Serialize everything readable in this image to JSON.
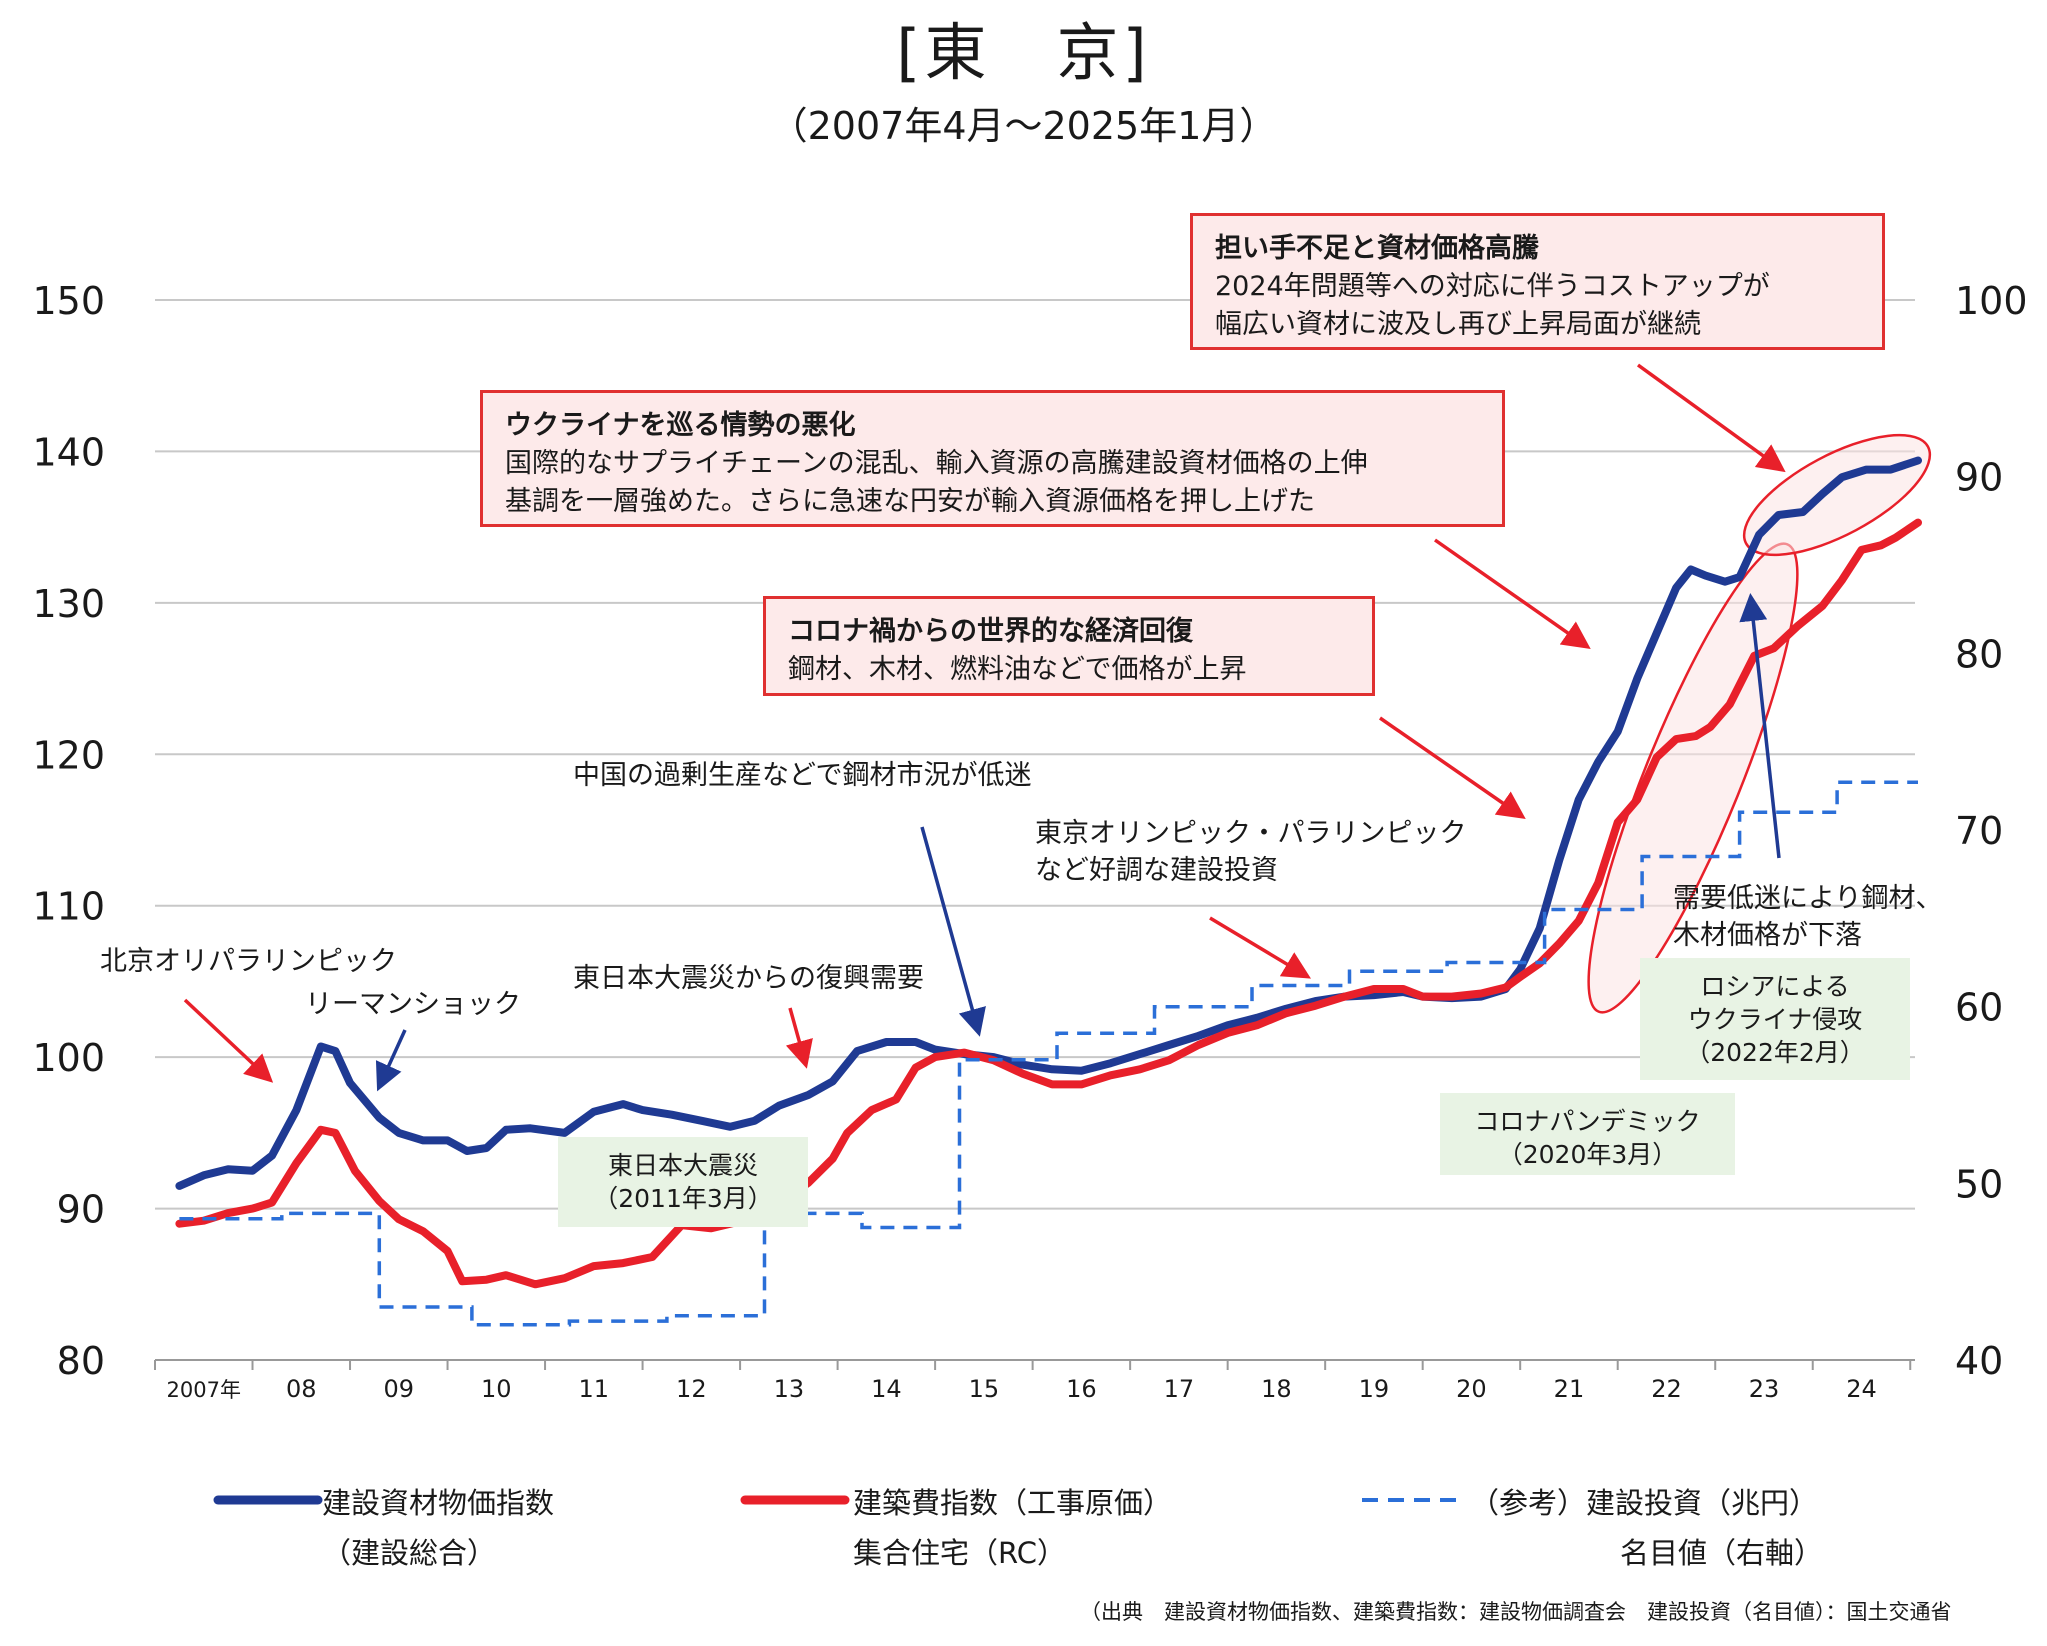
{
  "title": "[東　京]",
  "subtitle": "（2007年4月～2025年1月）",
  "source": "（出典　建設資材物価指数、建築費指数：建設物価調査会　建設投資（名目値）：国土交通省",
  "chart_data": {
    "type": "line",
    "title": "[東　京]",
    "subtitle": "（2007年4月～2025年1月）",
    "x_axis": {
      "unit": "year (decimal)",
      "range": [
        2007.0,
        2025.1
      ],
      "tick_labels": [
        "2007年",
        "08",
        "09",
        "10",
        "11",
        "12",
        "13",
        "14",
        "15",
        "16",
        "17",
        "18",
        "19",
        "20",
        "21",
        "22",
        "23",
        "24"
      ]
    },
    "y_left": {
      "range": [
        80,
        150
      ],
      "ticks": [
        80,
        90,
        100,
        110,
        120,
        130,
        140,
        150
      ],
      "grid": true
    },
    "y_right": {
      "range": [
        40,
        100
      ],
      "ticks": [
        40,
        50,
        60,
        70,
        80,
        90,
        100
      ]
    },
    "colors": {
      "blue": "#1f3a93",
      "red": "#e8202a",
      "dashed": "#2b6fd8"
    },
    "series": [
      {
        "name": "建設資材物価指数（建設総合）",
        "axis": "left",
        "color": "#1f3a93",
        "style": "solid",
        "points": [
          [
            2007.25,
            91.5
          ],
          [
            2007.5,
            92.2
          ],
          [
            2007.75,
            92.6
          ],
          [
            2008.0,
            92.5
          ],
          [
            2008.2,
            93.5
          ],
          [
            2008.45,
            96.5
          ],
          [
            2008.7,
            100.7
          ],
          [
            2008.85,
            100.4
          ],
          [
            2009.0,
            98.3
          ],
          [
            2009.3,
            96.0
          ],
          [
            2009.5,
            95.0
          ],
          [
            2009.75,
            94.5
          ],
          [
            2010.0,
            94.5
          ],
          [
            2010.2,
            93.8
          ],
          [
            2010.4,
            94.0
          ],
          [
            2010.6,
            95.2
          ],
          [
            2010.85,
            95.3
          ],
          [
            2011.2,
            95.0
          ],
          [
            2011.5,
            96.4
          ],
          [
            2011.8,
            96.9
          ],
          [
            2012.0,
            96.5
          ],
          [
            2012.3,
            96.2
          ],
          [
            2012.6,
            95.8
          ],
          [
            2012.9,
            95.4
          ],
          [
            2013.15,
            95.8
          ],
          [
            2013.4,
            96.8
          ],
          [
            2013.7,
            97.5
          ],
          [
            2013.95,
            98.4
          ],
          [
            2014.2,
            100.4
          ],
          [
            2014.5,
            101.0
          ],
          [
            2014.8,
            101.0
          ],
          [
            2015.0,
            100.5
          ],
          [
            2015.3,
            100.2
          ],
          [
            2015.6,
            100.0
          ],
          [
            2015.9,
            99.5
          ],
          [
            2016.2,
            99.2
          ],
          [
            2016.5,
            99.1
          ],
          [
            2016.8,
            99.6
          ],
          [
            2017.1,
            100.2
          ],
          [
            2017.4,
            100.8
          ],
          [
            2017.7,
            101.4
          ],
          [
            2018.0,
            102.1
          ],
          [
            2018.3,
            102.6
          ],
          [
            2018.6,
            103.2
          ],
          [
            2018.9,
            103.7
          ],
          [
            2019.2,
            104.0
          ],
          [
            2019.5,
            104.1
          ],
          [
            2019.8,
            104.3
          ],
          [
            2020.0,
            104.0
          ],
          [
            2020.3,
            103.9
          ],
          [
            2020.6,
            104.0
          ],
          [
            2020.85,
            104.5
          ],
          [
            2021.0,
            105.8
          ],
          [
            2021.2,
            108.5
          ],
          [
            2021.4,
            113.0
          ],
          [
            2021.6,
            117.0
          ],
          [
            2021.8,
            119.5
          ],
          [
            2022.0,
            121.5
          ],
          [
            2022.2,
            125.0
          ],
          [
            2022.4,
            128.0
          ],
          [
            2022.6,
            131.0
          ],
          [
            2022.75,
            132.2
          ],
          [
            2022.9,
            131.8
          ],
          [
            2023.1,
            131.4
          ],
          [
            2023.25,
            131.7
          ],
          [
            2023.45,
            134.5
          ],
          [
            2023.65,
            135.8
          ],
          [
            2023.9,
            136.0
          ],
          [
            2024.1,
            137.2
          ],
          [
            2024.3,
            138.3
          ],
          [
            2024.55,
            138.8
          ],
          [
            2024.8,
            138.8
          ],
          [
            2025.08,
            139.4
          ]
        ]
      },
      {
        "name": "建築費指数（工事原価）集合住宅（RC）",
        "axis": "left",
        "color": "#e8202a",
        "style": "solid",
        "points": [
          [
            2007.25,
            89.0
          ],
          [
            2007.5,
            89.2
          ],
          [
            2007.75,
            89.7
          ],
          [
            2008.0,
            90.0
          ],
          [
            2008.2,
            90.4
          ],
          [
            2008.45,
            93.0
          ],
          [
            2008.7,
            95.2
          ],
          [
            2008.85,
            95.0
          ],
          [
            2009.05,
            92.5
          ],
          [
            2009.3,
            90.5
          ],
          [
            2009.5,
            89.3
          ],
          [
            2009.75,
            88.5
          ],
          [
            2010.0,
            87.2
          ],
          [
            2010.15,
            85.2
          ],
          [
            2010.4,
            85.3
          ],
          [
            2010.6,
            85.6
          ],
          [
            2010.9,
            85.0
          ],
          [
            2011.2,
            85.4
          ],
          [
            2011.5,
            86.2
          ],
          [
            2011.8,
            86.4
          ],
          [
            2012.1,
            86.8
          ],
          [
            2012.4,
            88.9
          ],
          [
            2012.7,
            88.7
          ],
          [
            2012.9,
            89.0
          ],
          [
            2013.15,
            89.4
          ],
          [
            2013.4,
            90.4
          ],
          [
            2013.7,
            91.7
          ],
          [
            2013.95,
            93.3
          ],
          [
            2014.1,
            95.0
          ],
          [
            2014.35,
            96.5
          ],
          [
            2014.6,
            97.2
          ],
          [
            2014.8,
            99.3
          ],
          [
            2015.0,
            100.0
          ],
          [
            2015.3,
            100.3
          ],
          [
            2015.6,
            99.8
          ],
          [
            2015.9,
            98.9
          ],
          [
            2016.2,
            98.2
          ],
          [
            2016.5,
            98.2
          ],
          [
            2016.8,
            98.8
          ],
          [
            2017.1,
            99.2
          ],
          [
            2017.4,
            99.8
          ],
          [
            2017.7,
            100.8
          ],
          [
            2018.0,
            101.6
          ],
          [
            2018.3,
            102.1
          ],
          [
            2018.6,
            102.9
          ],
          [
            2018.9,
            103.4
          ],
          [
            2019.2,
            104.0
          ],
          [
            2019.5,
            104.5
          ],
          [
            2019.8,
            104.5
          ],
          [
            2020.0,
            104.0
          ],
          [
            2020.3,
            104.0
          ],
          [
            2020.6,
            104.2
          ],
          [
            2020.85,
            104.6
          ],
          [
            2021.0,
            105.3
          ],
          [
            2021.2,
            106.2
          ],
          [
            2021.4,
            107.5
          ],
          [
            2021.6,
            109.0
          ],
          [
            2021.8,
            111.5
          ],
          [
            2022.0,
            115.5
          ],
          [
            2022.2,
            117.0
          ],
          [
            2022.4,
            119.8
          ],
          [
            2022.6,
            121.0
          ],
          [
            2022.8,
            121.2
          ],
          [
            2022.95,
            121.8
          ],
          [
            2023.15,
            123.3
          ],
          [
            2023.4,
            126.5
          ],
          [
            2023.6,
            127.0
          ],
          [
            2023.85,
            128.5
          ],
          [
            2024.1,
            129.8
          ],
          [
            2024.3,
            131.5
          ],
          [
            2024.5,
            133.5
          ],
          [
            2024.7,
            133.8
          ],
          [
            2024.85,
            134.3
          ],
          [
            2025.08,
            135.3
          ]
        ]
      },
      {
        "name": "（参考）建設投資（兆円）名目値（右軸）",
        "axis": "right",
        "color": "#2b6fd8",
        "style": "dashed",
        "steps": [
          [
            2007.25,
            48.0
          ],
          [
            2008.3,
            48.3
          ],
          [
            2009.3,
            43.0
          ],
          [
            2010.25,
            42.0
          ],
          [
            2011.25,
            42.2
          ],
          [
            2012.25,
            42.5
          ],
          [
            2013.25,
            48.3
          ],
          [
            2014.25,
            47.5
          ],
          [
            2015.25,
            57.0
          ],
          [
            2016.25,
            58.5
          ],
          [
            2017.25,
            60.0
          ],
          [
            2018.25,
            61.2
          ],
          [
            2019.25,
            62.0
          ],
          [
            2020.25,
            62.5
          ],
          [
            2021.25,
            65.5
          ],
          [
            2022.25,
            68.5
          ],
          [
            2023.25,
            71.0
          ],
          [
            2024.25,
            72.7
          ]
        ],
        "end": 2025.08
      }
    ],
    "legend": [
      {
        "label_line1": "建設資材物価指数",
        "label_line2": "（建設総合）"
      },
      {
        "label_line1": "建築費指数（工事原価）",
        "label_line2": "集合住宅（RC）"
      },
      {
        "label_line1": "（参考）建設投資（兆円）",
        "label_line2": "名目値（右軸）"
      }
    ],
    "legend_position": "bottom",
    "annotations": {
      "box_labor": {
        "head": "担い手不足と資材価格高騰",
        "line1": "2024年問題等への対応に伴うコストアップが",
        "line2": "幅広い資材に波及し再び上昇局面が継続"
      },
      "box_ukraine": {
        "head": "ウクライナを巡る情勢の悪化",
        "line1": "国際的なサプライチェーンの混乱、輸入資源の高騰建設資材価格の上伸",
        "line2": "基調を一層強めた。さらに急速な円安が輸入資源価格を押し上げた"
      },
      "box_corona": {
        "head": "コロナ禍からの世界的な経済回復",
        "line1": "鋼材、木材、燃料油などで価格が上昇"
      },
      "beijing": "北京オリパラリンピック",
      "lehman": "リーマンショック",
      "recovery": "東日本大震災からの復興需要",
      "china": "中国の過剰生産などで鋼材市況が低迷",
      "tokyo_olympic_line1": "東京オリンピック・パラリンピック",
      "tokyo_olympic_line2": "など好調な建設投資",
      "steel_drop_line1": "需要低迷により鋼材、",
      "steel_drop_line2": "木材価格が下落",
      "quake_line1": "東日本大震災",
      "quake_line2": "（2011年3月）",
      "pandemic_line1": "コロナパンデミック",
      "pandemic_line2": "（2020年3月）",
      "invasion_line1": "ロシアによる",
      "invasion_line2": "ウクライナ侵攻",
      "invasion_line3": "（2022年2月）"
    }
  }
}
